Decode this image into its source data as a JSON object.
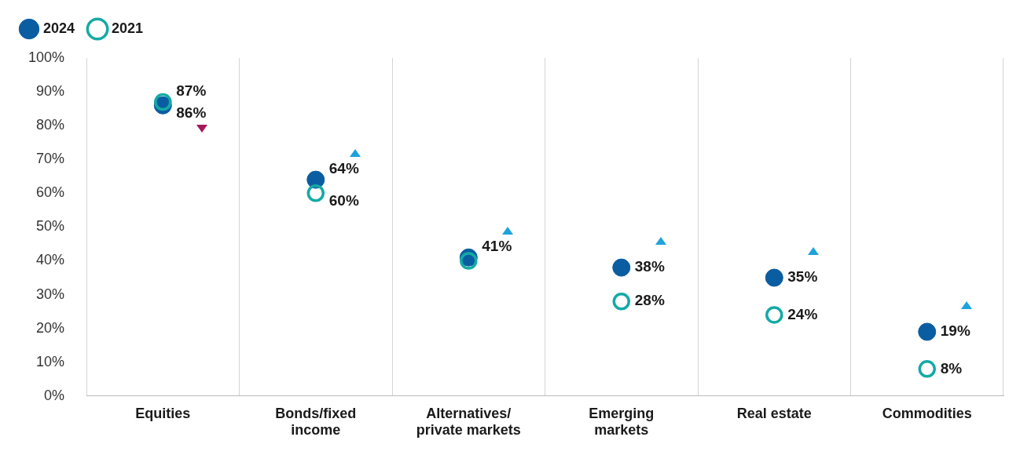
{
  "chart_data": {
    "type": "scatter",
    "categories": [
      "Equities",
      "Bonds/fixed income",
      "Alternatives/ private markets",
      "Emerging markets",
      "Real estate",
      "Commodities"
    ],
    "series": [
      {
        "name": "2024",
        "color": "#0b5da2",
        "values": [
          86,
          64,
          41,
          38,
          35,
          19
        ],
        "value_labels": [
          "86%",
          "64%",
          "41%",
          "38%",
          "35%",
          "19%"
        ]
      },
      {
        "name": "2021",
        "color": "#14aaa5",
        "values": [
          87,
          60,
          40,
          28,
          24,
          8
        ],
        "value_labels": [
          "87%",
          "60%",
          null,
          "28%",
          "24%",
          "8%"
        ]
      }
    ],
    "ylim": [
      0,
      100
    ],
    "yticks": [
      {
        "value": 0,
        "label": "0%"
      },
      {
        "value": 10,
        "label": "10%"
      },
      {
        "value": 20,
        "label": "20%"
      },
      {
        "value": 30,
        "label": "30%"
      },
      {
        "value": 40,
        "label": "40%"
      },
      {
        "value": 50,
        "label": "50%"
      },
      {
        "value": 60,
        "label": "60%"
      },
      {
        "value": 70,
        "label": "70%"
      },
      {
        "value": 80,
        "label": "80%"
      },
      {
        "value": 90,
        "label": "90%"
      },
      {
        "value": 100,
        "label": "100%"
      }
    ],
    "grid": "x",
    "legend": "top left",
    "marker": "circle"
  }
}
